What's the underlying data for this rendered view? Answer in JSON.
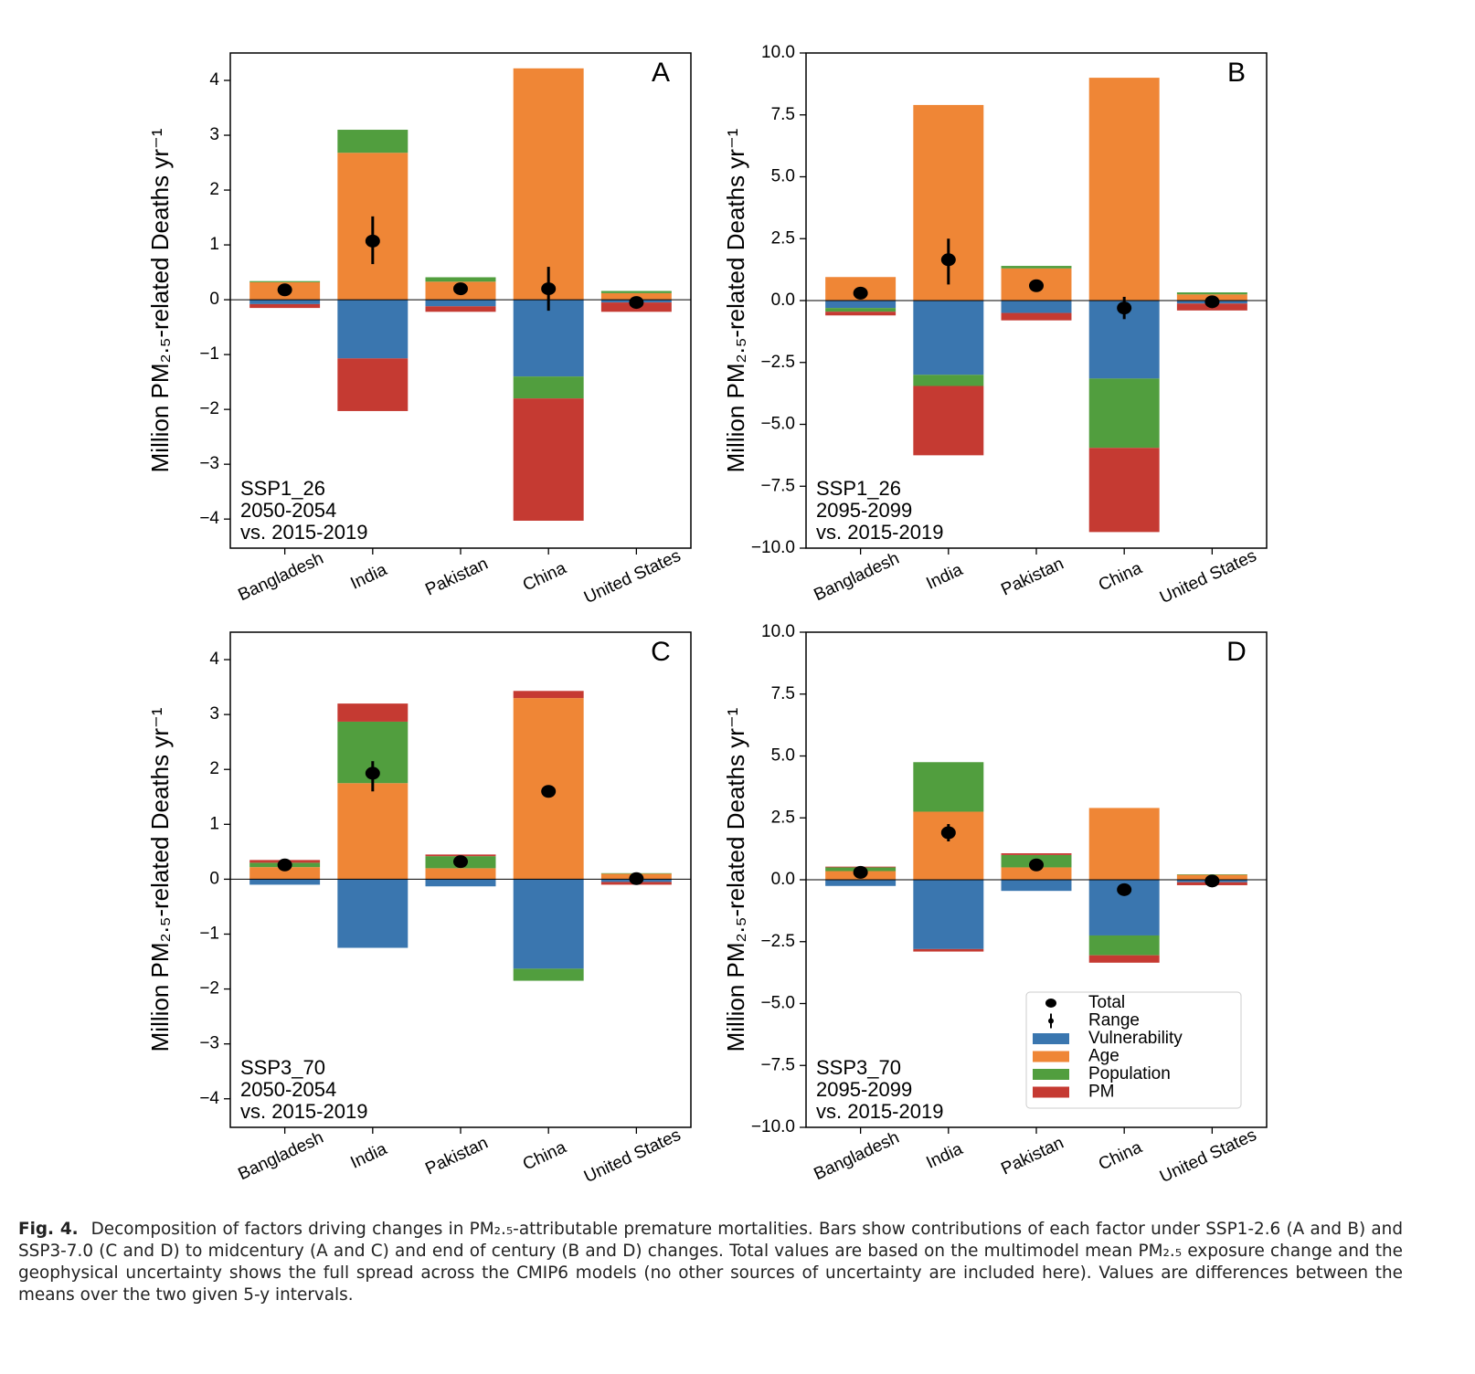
{
  "chart_data": [
    {
      "type": "bar",
      "panel": "A",
      "ylabel": "Million PM₂.₅-related Deaths yr⁻¹",
      "annotation": [
        "SSP1_26",
        "2050-2054",
        "vs. 2015-2019"
      ],
      "categories": [
        "Bangladesh",
        "India",
        "Pakistan",
        "China",
        "United States"
      ],
      "series": [
        {
          "color": "#3a76af",
          "values": [
            -0.08,
            -1.07,
            -0.12,
            -1.4,
            -0.05
          ]
        },
        {
          "color": "#ef8636",
          "values": [
            0.32,
            2.68,
            0.33,
            4.22,
            0.12
          ]
        },
        {
          "color": "#519e3e",
          "values": [
            0.02,
            0.42,
            0.08,
            -0.4,
            0.04
          ]
        },
        {
          "color": "#c53a32",
          "values": [
            -0.07,
            -0.96,
            -0.1,
            -2.23,
            -0.17
          ]
        }
      ],
      "total": {
        "values": [
          0.18,
          1.07,
          0.2,
          0.2,
          -0.05
        ],
        "low": [
          0.15,
          0.65,
          0.17,
          -0.2,
          -0.08
        ],
        "high": [
          0.21,
          1.52,
          0.23,
          0.6,
          -0.02
        ]
      },
      "ylim": [
        -4.53,
        4.5
      ],
      "yticks": [
        {
          "value": -4,
          "label": "−4"
        },
        {
          "value": -3,
          "label": "−3"
        },
        {
          "value": -2,
          "label": "−2"
        },
        {
          "value": -1,
          "label": "−1"
        },
        0,
        1,
        2,
        3,
        4
      ]
    },
    {
      "type": "bar",
      "panel": "B",
      "ylabel": "Million PM₂.₅-related Deaths yr⁻¹",
      "annotation": [
        "SSP1_26",
        "2095-2099",
        "vs. 2015-2019"
      ],
      "categories": [
        "Bangladesh",
        "India",
        "Pakistan",
        "China",
        "United States"
      ],
      "series": [
        {
          "color": "#3a76af",
          "values": [
            -0.3,
            -3.0,
            -0.5,
            -3.15,
            -0.12
          ]
        },
        {
          "color": "#ef8636",
          "values": [
            0.95,
            7.9,
            1.3,
            9.0,
            0.25
          ]
        },
        {
          "color": "#519e3e",
          "values": [
            -0.15,
            -0.45,
            0.1,
            -2.8,
            0.08
          ]
        },
        {
          "color": "#c53a32",
          "values": [
            -0.15,
            -2.8,
            -0.3,
            -3.4,
            -0.28
          ]
        }
      ],
      "total": {
        "values": [
          0.3,
          1.65,
          0.6,
          -0.3,
          -0.05
        ],
        "low": [
          0.2,
          0.65,
          0.5,
          -0.75,
          -0.12
        ],
        "high": [
          0.4,
          2.5,
          0.7,
          0.15,
          0.02
        ]
      },
      "ylim": [
        -10,
        10
      ],
      "yticks": [
        {
          "value": -10,
          "label": "−10.0"
        },
        {
          "value": -7.5,
          "label": "−7.5"
        },
        {
          "value": -5,
          "label": "−5.0"
        },
        {
          "value": -2.5,
          "label": "−2.5"
        },
        {
          "value": 0,
          "label": "0.0"
        },
        2.5,
        {
          "value": 5,
          "label": "5.0"
        },
        7.5,
        {
          "value": 10,
          "label": "10.0"
        }
      ]
    },
    {
      "type": "bar",
      "panel": "C",
      "ylabel": "Million PM₂.₅-related Deaths yr⁻¹",
      "annotation": [
        "SSP3_70",
        "2050-2054",
        "vs. 2015-2019"
      ],
      "categories": [
        "Bangladesh",
        "India",
        "Pakistan",
        "China",
        "United States"
      ],
      "series": [
        {
          "color": "#3a76af",
          "values": [
            -0.1,
            -1.25,
            -0.13,
            -1.63,
            -0.05
          ]
        },
        {
          "color": "#ef8636",
          "values": [
            0.22,
            1.75,
            0.2,
            3.3,
            0.1
          ]
        },
        {
          "color": "#519e3e",
          "values": [
            0.08,
            1.12,
            0.22,
            -0.22,
            0.01
          ]
        },
        {
          "color": "#c53a32",
          "values": [
            0.05,
            0.33,
            0.03,
            0.13,
            -0.05
          ]
        }
      ],
      "total": {
        "values": [
          0.26,
          1.93,
          0.32,
          1.6,
          0.01
        ],
        "low": [
          0.22,
          1.6,
          0.28,
          1.53,
          -0.02
        ],
        "high": [
          0.3,
          2.15,
          0.36,
          1.67,
          0.04
        ]
      },
      "ylim": [
        -4.52,
        4.5
      ],
      "yticks": [
        {
          "value": -4,
          "label": "−4"
        },
        {
          "value": -3,
          "label": "−3"
        },
        {
          "value": -2,
          "label": "−2"
        },
        {
          "value": -1,
          "label": "−1"
        },
        0,
        1,
        2,
        3,
        4
      ]
    },
    {
      "type": "bar",
      "panel": "D",
      "ylabel": "Million PM₂.₅-related Deaths yr⁻¹",
      "annotation": [
        "SSP3_70",
        "2095-2099",
        "vs. 2015-2019"
      ],
      "categories": [
        "Bangladesh",
        "India",
        "Pakistan",
        "China",
        "United States"
      ],
      "series": [
        {
          "name": "Vulnerability",
          "color": "#3a76af",
          "values": [
            -0.25,
            -2.8,
            -0.45,
            -2.25,
            -0.1
          ]
        },
        {
          "name": "Age",
          "color": "#ef8636",
          "values": [
            0.35,
            2.75,
            0.5,
            2.9,
            0.2
          ]
        },
        {
          "name": "Population",
          "color": "#519e3e",
          "values": [
            0.15,
            2.0,
            0.5,
            -0.8,
            0.02
          ]
        },
        {
          "name": "PM",
          "color": "#c53a32",
          "values": [
            0.03,
            -0.1,
            0.07,
            -0.3,
            -0.12
          ]
        }
      ],
      "total": {
        "name": "Total",
        "range_name": "Range",
        "values": [
          0.3,
          1.9,
          0.6,
          -0.4,
          -0.05
        ],
        "low": [
          0.2,
          1.55,
          0.5,
          -0.5,
          -0.12
        ],
        "high": [
          0.4,
          2.25,
          0.7,
          -0.3,
          0.02
        ]
      },
      "ylim": [
        -10,
        10
      ],
      "yticks": [
        {
          "value": -10,
          "label": "−10.0"
        },
        {
          "value": -7.5,
          "label": "−7.5"
        },
        {
          "value": -5,
          "label": "−5.0"
        },
        {
          "value": -2.5,
          "label": "−2.5"
        },
        {
          "value": 0,
          "label": "0.0"
        },
        2.5,
        {
          "value": 5,
          "label": "5.0"
        },
        7.5,
        {
          "value": 10,
          "label": "10.0"
        }
      ],
      "legend": "lower right"
    }
  ],
  "caption": {
    "label": "Fig. 4.",
    "text": "Decomposition of factors driving changes in PM₂.₅-attributable premature mortalities. Bars show contributions of each factor under SSP1-2.6 (A and B) and SSP3-7.0 (C and D) to midcentury (A and C) and end of century (B and D) changes. Total values are based on the multimodel mean PM₂.₅ exposure change and the geophysical uncertainty shows the full spread across the CMIP6 models (no other sources of uncertainty are included here). Values are differences between the means over the two given 5-y intervals."
  }
}
